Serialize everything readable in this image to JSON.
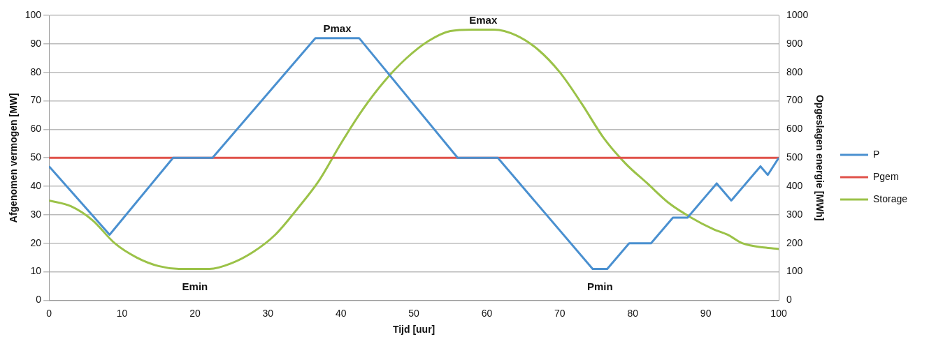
{
  "chart_data": {
    "type": "line",
    "xlabel": "Tijd [uur]",
    "ylabel": "Afgenomen vermogen [MW]",
    "y2label": "Opgeslagen energie [MWh]",
    "xlim": [
      0,
      100
    ],
    "xticks": [
      0,
      10,
      20,
      30,
      40,
      50,
      60,
      70,
      80,
      90,
      100
    ],
    "ylim": [
      0,
      100
    ],
    "yticks": [
      0,
      10,
      20,
      30,
      40,
      50,
      60,
      70,
      80,
      90,
      100
    ],
    "y2lim": [
      0,
      1000
    ],
    "y2ticks": [
      0,
      100,
      200,
      300,
      400,
      500,
      600,
      700,
      800,
      900,
      1000
    ],
    "grid": "y",
    "legend": "right",
    "marker": "none",
    "series": [
      {
        "name": "P",
        "color": "#4a90d0",
        "x": [
          0,
          8.3,
          17,
          22.4,
          36.5,
          42.5,
          56,
          61.5,
          74.5,
          76.5,
          79.5,
          82.5,
          85.5,
          87.5,
          91.5,
          93.5,
          97.5,
          98.5,
          100
        ],
        "values": [
          47,
          23,
          50,
          50,
          92,
          92,
          50,
          50,
          11,
          11,
          20,
          20,
          29,
          29,
          41,
          35,
          47,
          44,
          50
        ]
      },
      {
        "name": "Pgem",
        "color": "#e0524a",
        "x": [
          0,
          100
        ],
        "values": [
          50,
          50
        ]
      },
      {
        "name": "Storage",
        "color": "#9bc248",
        "axis": "y2",
        "x": [
          0,
          3,
          6,
          9,
          12,
          15,
          18,
          22,
          25,
          28,
          31,
          34,
          37,
          40,
          43,
          46,
          49,
          52,
          55,
          58,
          61,
          64,
          67,
          70,
          73,
          76,
          79,
          82,
          85,
          88,
          91,
          93,
          95,
          98,
          100
        ],
        "values": [
          350,
          330,
          280,
          200,
          150,
          120,
          110,
          110,
          130,
          170,
          230,
          320,
          420,
          550,
          670,
          770,
          850,
          910,
          945,
          950,
          950,
          930,
          880,
          800,
          690,
          570,
          480,
          410,
          340,
          290,
          250,
          230,
          200,
          185,
          180
        ]
      }
    ],
    "annotations": [
      {
        "text": "Pmax",
        "x": 39.5,
        "y": 92
      },
      {
        "text": "Emax",
        "x": 59.5,
        "y": 95
      },
      {
        "text": "Emin",
        "x": 20,
        "y": 11
      },
      {
        "text": "Pmin",
        "x": 75.5,
        "y": 11
      }
    ]
  }
}
